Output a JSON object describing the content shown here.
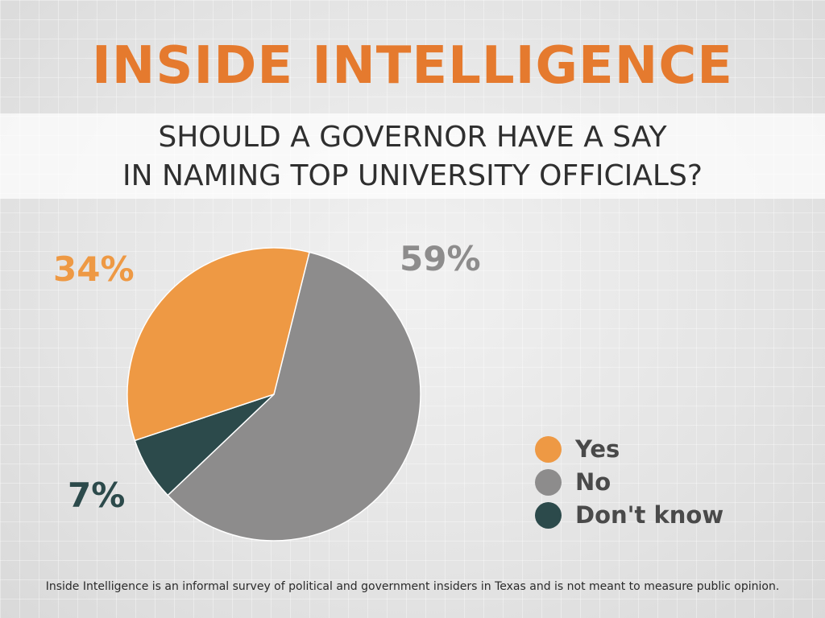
{
  "header": {
    "brand": "INSIDE INTELLIGENCE",
    "question_line1": "SHOULD A GOVERNOR HAVE A SAY",
    "question_line2": "IN NAMING TOP UNIVERSITY OFFICIALS?"
  },
  "chart_data": {
    "type": "pie",
    "title": "SHOULD A GOVERNOR HAVE A SAY IN NAMING TOP UNIVERSITY OFFICIALS?",
    "slices": [
      {
        "name": "Yes",
        "value": 34,
        "label": "34%",
        "color": "#ee9944"
      },
      {
        "name": "No",
        "value": 59,
        "label": "59%",
        "color": "#8d8c8c"
      },
      {
        "name": "Don't know",
        "value": 7,
        "label": "7%",
        "color": "#2c4a4b"
      }
    ],
    "legend": {
      "position": "bottom-right",
      "entries": [
        "Yes",
        "No",
        "Don't know"
      ]
    }
  },
  "footnote": "Inside Intelligence is an informal survey of political and government insiders in Texas and is not meant to measure public opinion."
}
